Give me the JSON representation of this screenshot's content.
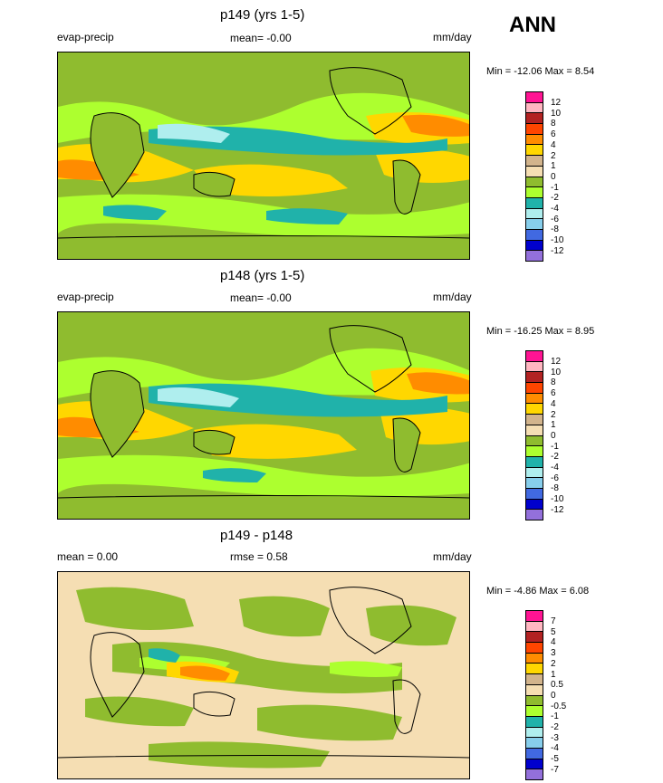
{
  "season": "ANN",
  "panels": [
    {
      "title": "p149 (yrs 1-5)",
      "left_label": "evap-precip",
      "center_label": "mean=  -0.00",
      "right_label": "mm/day",
      "minmax": "Min = -12.06 Max =   8.54",
      "colorbar": {
        "labels": [
          "12",
          "10",
          "8",
          "6",
          "4",
          "2",
          "1",
          "0",
          "-1",
          "-2",
          "-4",
          "-6",
          "-8",
          "-10",
          "-12"
        ],
        "colors": [
          "#ff1493",
          "#ffb6c1",
          "#b22222",
          "#ff4500",
          "#ff8c00",
          "#ffd700",
          "#d2b48c",
          "#f5deb3",
          "#8fbc2f",
          "#adff2f",
          "#20b2aa",
          "#afeeee",
          "#87ceeb",
          "#4169e1",
          "#0000cd",
          "#9370db"
        ]
      }
    },
    {
      "title": "p148 (yrs 1-5)",
      "left_label": "evap-precip",
      "center_label": "mean=  -0.00",
      "right_label": "mm/day",
      "minmax": "Min = -16.25 Max =   8.95",
      "colorbar": {
        "labels": [
          "12",
          "10",
          "8",
          "6",
          "4",
          "2",
          "1",
          "0",
          "-1",
          "-2",
          "-4",
          "-6",
          "-8",
          "-10",
          "-12"
        ],
        "colors": [
          "#ff1493",
          "#ffb6c1",
          "#b22222",
          "#ff4500",
          "#ff8c00",
          "#ffd700",
          "#d2b48c",
          "#f5deb3",
          "#8fbc2f",
          "#adff2f",
          "#20b2aa",
          "#afeeee",
          "#87ceeb",
          "#4169e1",
          "#0000cd",
          "#9370db"
        ]
      }
    },
    {
      "title": "p149 - p148",
      "left_label": "mean =   0.00",
      "center_label": "rmse =   0.58",
      "right_label": "mm/day",
      "minmax": "Min =  -4.86 Max =   6.08",
      "colorbar": {
        "labels": [
          "7",
          "5",
          "4",
          "3",
          "2",
          "1",
          "0.5",
          "0",
          "-0.5",
          "-1",
          "-2",
          "-3",
          "-4",
          "-5",
          "-7"
        ],
        "colors": [
          "#ff1493",
          "#ffb6c1",
          "#b22222",
          "#ff4500",
          "#ff8c00",
          "#ffd700",
          "#d2b48c",
          "#f5deb3",
          "#8fbc2f",
          "#adff2f",
          "#20b2aa",
          "#afeeee",
          "#87ceeb",
          "#4169e1",
          "#0000cd",
          "#9370db"
        ]
      }
    }
  ]
}
